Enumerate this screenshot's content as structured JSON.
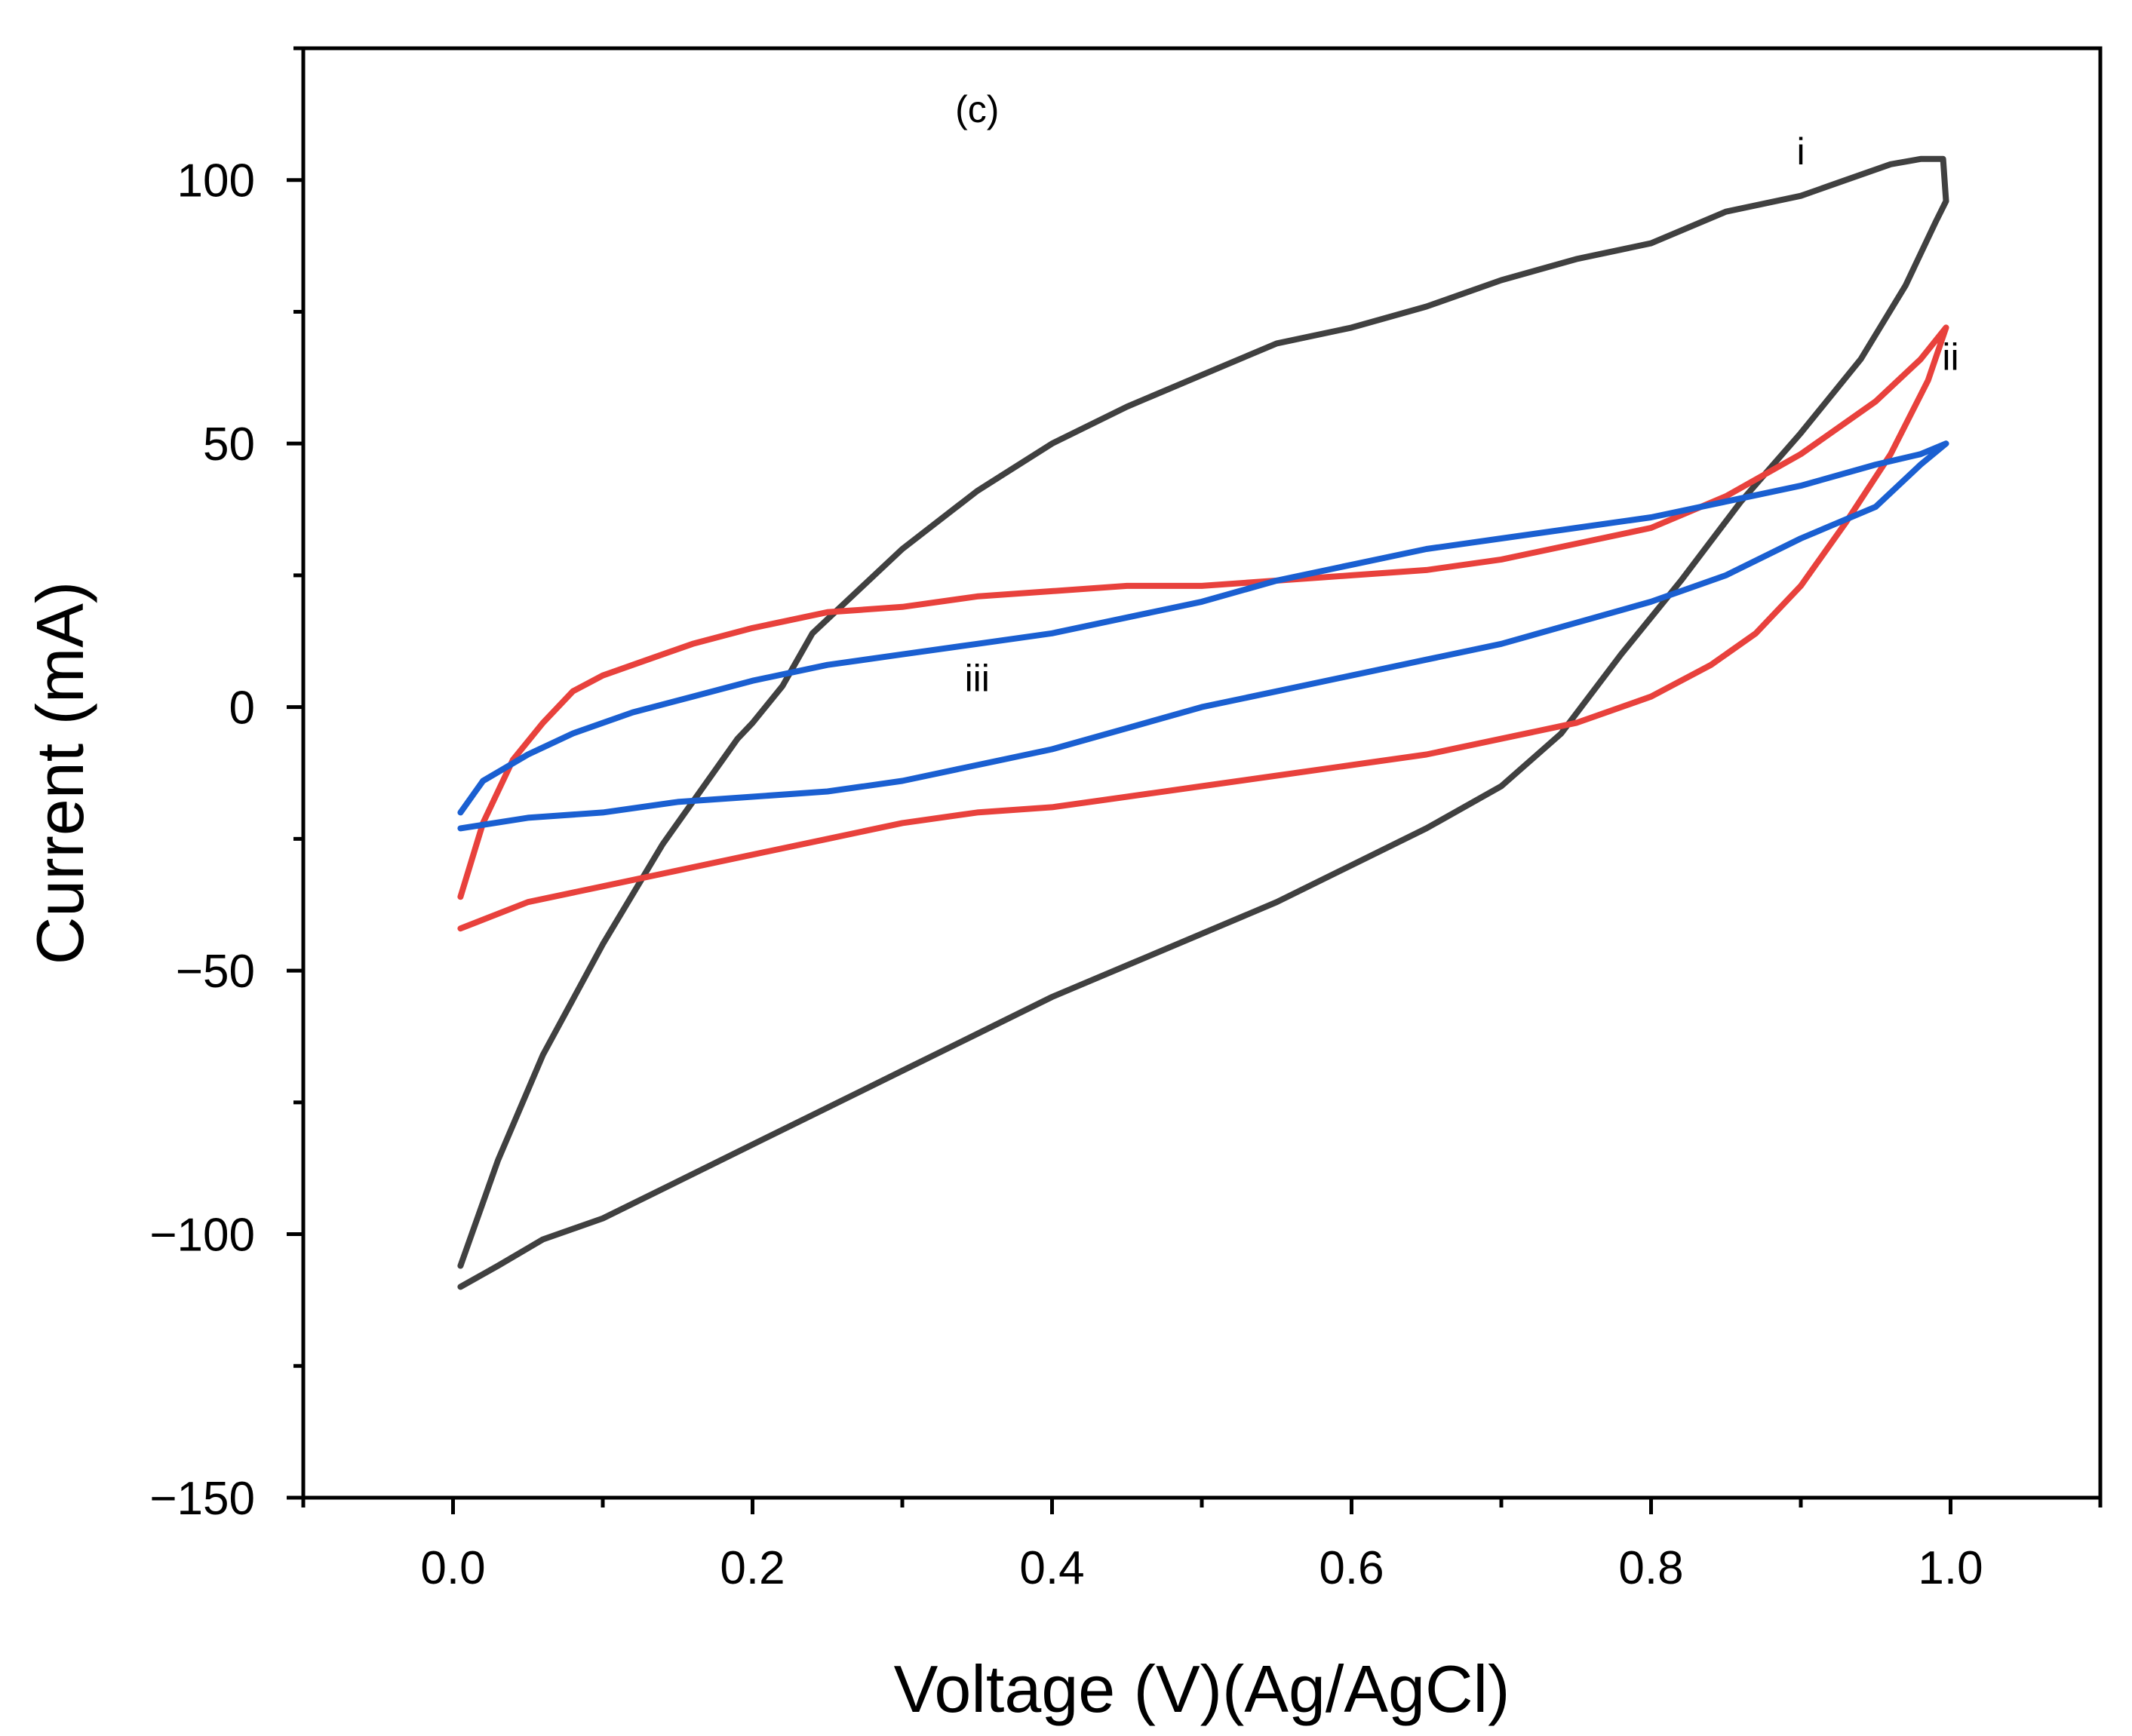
{
  "chart_data": {
    "type": "line",
    "xlabel": "Voltage (V)(Ag/AgCl)",
    "ylabel": "Current (mA)",
    "xlim": [
      -0.1,
      1.1
    ],
    "ylim": [
      -150,
      125
    ],
    "xticks": [
      0.0,
      0.2,
      0.4,
      0.6,
      0.8,
      1.0
    ],
    "xtick_labels": [
      "0.0",
      "0.2",
      "0.4",
      "0.6",
      "0.8",
      "1.0"
    ],
    "yticks": [
      -150,
      -100,
      -50,
      0,
      50,
      100
    ],
    "ytick_labels": [
      "−150",
      "−100",
      "−50",
      "0",
      "50",
      "100"
    ],
    "grid": false,
    "annotations": [
      {
        "text": "(c)",
        "x": 0.35,
        "y": 111
      },
      {
        "text": "i",
        "x": 0.9,
        "y": 103
      },
      {
        "text": "ii",
        "x": 1.0,
        "y": 64
      },
      {
        "text": "iii",
        "x": 0.35,
        "y": 3
      }
    ],
    "series": [
      {
        "label": "i",
        "color": "#404040",
        "x": [
          0.005,
          0.03,
          0.06,
          0.1,
          0.14,
          0.18,
          0.19,
          0.2,
          0.22,
          0.24,
          0.27,
          0.3,
          0.35,
          0.4,
          0.45,
          0.5,
          0.55,
          0.6,
          0.65,
          0.7,
          0.75,
          0.8,
          0.85,
          0.9,
          0.93,
          0.96,
          0.98,
          0.995,
          0.997,
          0.99,
          0.97,
          0.94,
          0.9,
          0.86,
          0.82,
          0.78,
          0.74,
          0.7,
          0.65,
          0.6,
          0.55,
          0.5,
          0.45,
          0.4,
          0.35,
          0.3,
          0.25,
          0.2,
          0.15,
          0.1,
          0.06,
          0.03,
          0.005
        ],
        "y": [
          -106,
          -86,
          -66,
          -45,
          -26,
          -10,
          -6,
          -3,
          4,
          14,
          22,
          30,
          41,
          50,
          57,
          63,
          69,
          72,
          76,
          81,
          85,
          88,
          94,
          97,
          100,
          103,
          104,
          104,
          96,
          92,
          80,
          66,
          52,
          39,
          24,
          10,
          -5,
          -15,
          -23,
          -30,
          -37,
          -43,
          -49,
          -55,
          -62,
          -69,
          -76,
          -83,
          -90,
          -97,
          -101,
          -106,
          -110
        ]
      },
      {
        "label": "ii",
        "color": "#e8413c",
        "x": [
          0.005,
          0.02,
          0.04,
          0.06,
          0.08,
          0.1,
          0.13,
          0.16,
          0.2,
          0.25,
          0.3,
          0.35,
          0.4,
          0.45,
          0.5,
          0.55,
          0.6,
          0.65,
          0.7,
          0.75,
          0.8,
          0.85,
          0.9,
          0.95,
          0.98,
          0.997,
          0.985,
          0.96,
          0.93,
          0.9,
          0.87,
          0.84,
          0.8,
          0.75,
          0.7,
          0.65,
          0.6,
          0.55,
          0.5,
          0.45,
          0.4,
          0.35,
          0.3,
          0.25,
          0.2,
          0.15,
          0.1,
          0.05,
          0.005
        ],
        "y": [
          -36,
          -22,
          -10,
          -3,
          3,
          6,
          9,
          12,
          15,
          18,
          19,
          21,
          22,
          23,
          23,
          24,
          25,
          26,
          28,
          31,
          34,
          40,
          48,
          58,
          66,
          72,
          62,
          48,
          35,
          23,
          14,
          8,
          2,
          -3,
          -6,
          -9,
          -11,
          -13,
          -15,
          -17,
          -19,
          -20,
          -22,
          -25,
          -28,
          -31,
          -34,
          -37,
          -42
        ]
      },
      {
        "label": "iii",
        "color": "#1a5fd1",
        "x": [
          0.005,
          0.02,
          0.05,
          0.08,
          0.12,
          0.16,
          0.2,
          0.25,
          0.3,
          0.35,
          0.4,
          0.45,
          0.5,
          0.55,
          0.6,
          0.65,
          0.7,
          0.75,
          0.8,
          0.85,
          0.9,
          0.95,
          0.98,
          0.997,
          0.98,
          0.95,
          0.9,
          0.85,
          0.8,
          0.75,
          0.7,
          0.65,
          0.6,
          0.55,
          0.5,
          0.45,
          0.4,
          0.35,
          0.3,
          0.25,
          0.2,
          0.15,
          0.1,
          0.05,
          0.005
        ],
        "y": [
          -20,
          -14,
          -9,
          -5,
          -1,
          2,
          5,
          8,
          10,
          12,
          14,
          17,
          20,
          24,
          27,
          30,
          32,
          34,
          36,
          39,
          42,
          46,
          48,
          50,
          46,
          38,
          32,
          25,
          20,
          16,
          12,
          9,
          6,
          3,
          0,
          -4,
          -8,
          -11,
          -14,
          -16,
          -17,
          -18,
          -20,
          -21,
          -23
        ]
      }
    ]
  }
}
